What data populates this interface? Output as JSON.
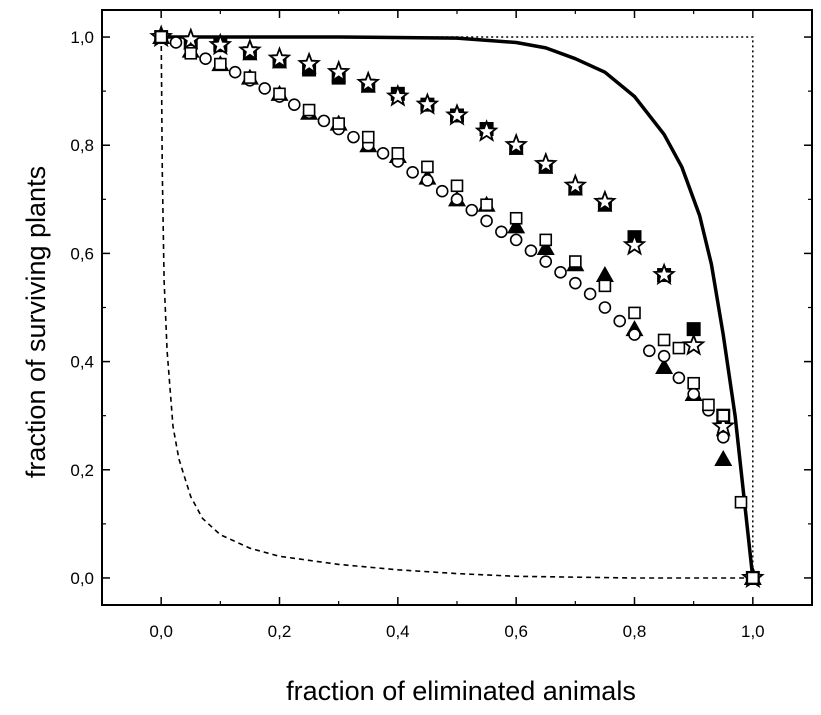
{
  "chart_data": {
    "type": "scatter",
    "xlabel": "fraction of eliminated animals",
    "ylabel": "fraction of surviving plants",
    "xlim": [
      -0.1,
      1.1
    ],
    "ylim": [
      -0.05,
      1.05
    ],
    "xticks": [
      0.0,
      0.2,
      0.4,
      0.6,
      0.8,
      1.0
    ],
    "yticks": [
      0.0,
      0.2,
      0.4,
      0.6,
      0.8,
      1.0
    ],
    "xtick_labels": [
      "0,0",
      "0,2",
      "0,4",
      "0,6",
      "0,8",
      "1,0"
    ],
    "ytick_labels": [
      "0,0",
      "0,2",
      "0,4",
      "0,6",
      "0,8",
      "1,0"
    ],
    "grid": false,
    "series": [
      {
        "marker": "filled-square",
        "x": [
          0.0,
          0.05,
          0.1,
          0.15,
          0.2,
          0.25,
          0.3,
          0.35,
          0.4,
          0.45,
          0.5,
          0.55,
          0.6,
          0.65,
          0.7,
          0.75,
          0.8,
          0.85,
          0.9,
          0.95,
          1.0
        ],
        "y": [
          1.0,
          0.99,
          0.985,
          0.97,
          0.955,
          0.94,
          0.925,
          0.91,
          0.895,
          0.875,
          0.855,
          0.83,
          0.795,
          0.76,
          0.72,
          0.69,
          0.63,
          0.56,
          0.46,
          0.3,
          0.0
        ]
      },
      {
        "marker": "open-star",
        "x": [
          0.0,
          0.05,
          0.1,
          0.15,
          0.2,
          0.25,
          0.3,
          0.35,
          0.4,
          0.45,
          0.5,
          0.55,
          0.6,
          0.65,
          0.7,
          0.75,
          0.8,
          0.85,
          0.9,
          0.95,
          1.0
        ],
        "y": [
          1.0,
          0.995,
          0.985,
          0.975,
          0.96,
          0.95,
          0.935,
          0.915,
          0.89,
          0.875,
          0.855,
          0.825,
          0.8,
          0.765,
          0.725,
          0.695,
          0.615,
          0.56,
          0.43,
          0.28,
          0.0
        ]
      },
      {
        "marker": "filled-triangle",
        "x": [
          0.0,
          0.05,
          0.1,
          0.15,
          0.2,
          0.25,
          0.3,
          0.35,
          0.4,
          0.45,
          0.5,
          0.55,
          0.6,
          0.65,
          0.7,
          0.75,
          0.8,
          0.85,
          0.9,
          0.95,
          1.0
        ],
        "y": [
          1.0,
          0.975,
          0.95,
          0.925,
          0.895,
          0.86,
          0.84,
          0.8,
          0.78,
          0.74,
          0.7,
          0.69,
          0.65,
          0.61,
          0.58,
          0.56,
          0.46,
          0.39,
          0.34,
          0.22,
          0.0
        ]
      },
      {
        "marker": "open-circle",
        "x": [
          0.0,
          0.025,
          0.05,
          0.075,
          0.1,
          0.125,
          0.15,
          0.175,
          0.2,
          0.225,
          0.25,
          0.275,
          0.3,
          0.325,
          0.35,
          0.375,
          0.4,
          0.425,
          0.45,
          0.475,
          0.5,
          0.525,
          0.55,
          0.575,
          0.6,
          0.625,
          0.65,
          0.675,
          0.7,
          0.725,
          0.75,
          0.775,
          0.8,
          0.825,
          0.85,
          0.875,
          0.9,
          0.925,
          0.95
        ],
        "y": [
          1.0,
          0.99,
          0.975,
          0.96,
          0.95,
          0.935,
          0.92,
          0.905,
          0.89,
          0.875,
          0.86,
          0.845,
          0.83,
          0.815,
          0.8,
          0.785,
          0.77,
          0.75,
          0.735,
          0.715,
          0.7,
          0.68,
          0.66,
          0.64,
          0.625,
          0.605,
          0.585,
          0.565,
          0.545,
          0.525,
          0.5,
          0.475,
          0.45,
          0.42,
          0.41,
          0.37,
          0.34,
          0.31,
          0.26
        ]
      },
      {
        "marker": "open-square",
        "x": [
          0.0,
          0.05,
          0.1,
          0.15,
          0.2,
          0.25,
          0.3,
          0.35,
          0.4,
          0.45,
          0.5,
          0.55,
          0.6,
          0.65,
          0.7,
          0.75,
          0.8,
          0.85,
          0.875,
          0.9,
          0.925,
          0.95,
          0.98,
          1.0
        ],
        "y": [
          1.0,
          0.97,
          0.95,
          0.925,
          0.895,
          0.865,
          0.84,
          0.815,
          0.785,
          0.76,
          0.725,
          0.69,
          0.665,
          0.625,
          0.585,
          0.54,
          0.49,
          0.44,
          0.425,
          0.36,
          0.32,
          0.3,
          0.14,
          0.0
        ]
      }
    ],
    "lines": [
      {
        "style": "solid",
        "x": [
          0.0,
          0.3,
          0.5,
          0.6,
          0.65,
          0.7,
          0.75,
          0.8,
          0.85,
          0.88,
          0.91,
          0.93,
          0.95,
          0.97,
          0.98,
          0.99,
          1.0
        ],
        "y": [
          1.0,
          1.0,
          0.998,
          0.99,
          0.98,
          0.96,
          0.935,
          0.89,
          0.82,
          0.76,
          0.67,
          0.58,
          0.45,
          0.3,
          0.2,
          0.1,
          0.0
        ]
      },
      {
        "style": "dashed",
        "x": [
          0.0,
          0.002,
          0.005,
          0.01,
          0.02,
          0.03,
          0.05,
          0.07,
          0.1,
          0.15,
          0.2,
          0.3,
          0.4,
          0.5,
          0.6,
          0.8,
          1.0
        ],
        "y": [
          1.0,
          0.75,
          0.55,
          0.42,
          0.28,
          0.22,
          0.15,
          0.11,
          0.08,
          0.055,
          0.04,
          0.025,
          0.015,
          0.008,
          0.003,
          0.0,
          0.0
        ]
      },
      {
        "style": "dotted",
        "x": [
          0.0,
          1.0,
          1.0
        ],
        "y": [
          1.0,
          1.0,
          0.0
        ]
      }
    ]
  }
}
